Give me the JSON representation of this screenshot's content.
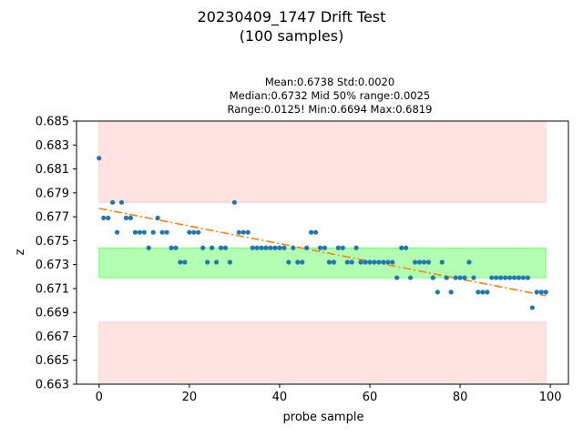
{
  "chart_data": {
    "type": "scatter",
    "title": "20230409_1747 Drift Test",
    "subtitle": "(100 samples)",
    "stats_lines": [
      "Mean:0.6738  Std:0.0020",
      "Median:0.6732  Mid 50% range:0.0025",
      "Range:0.0125!  Min:0.6694  Max:0.6819"
    ],
    "xlabel": "probe sample",
    "ylabel": "z",
    "xlim": [
      -5,
      104
    ],
    "ylim": [
      0.663,
      0.685
    ],
    "xticks": [
      0,
      20,
      40,
      60,
      80,
      100
    ],
    "xtick_labels": [
      "0",
      "20",
      "40",
      "60",
      "80",
      "100"
    ],
    "yticks": [
      0.663,
      0.665,
      0.667,
      0.669,
      0.671,
      0.673,
      0.675,
      0.677,
      0.679,
      0.681,
      0.683,
      0.685
    ],
    "ytick_labels": [
      "0.663",
      "0.665",
      "0.667",
      "0.669",
      "0.671",
      "0.673",
      "0.675",
      "0.677",
      "0.679",
      "0.681",
      "0.683",
      "0.685"
    ],
    "grid": false,
    "bands": [
      {
        "kind": "upper-limit",
        "x": [
          0,
          99
        ],
        "y": [
          0.6782,
          0.685
        ],
        "color": "#ffcccc",
        "opacity": 0.55
      },
      {
        "kind": "target",
        "x": [
          0,
          99
        ],
        "y": [
          0.6719,
          0.6744
        ],
        "color": "#66ff66",
        "opacity": 0.5
      },
      {
        "kind": "lower-limit",
        "x": [
          0,
          99
        ],
        "y": [
          0.663,
          0.6682
        ],
        "color": "#ffcccc",
        "opacity": 0.55
      }
    ],
    "series": [
      {
        "kind": "points",
        "color": "#1f77b4",
        "x": [
          0,
          1,
          2,
          3,
          4,
          5,
          6,
          7,
          8,
          9,
          10,
          11,
          12,
          13,
          14,
          15,
          16,
          17,
          18,
          19,
          20,
          21,
          22,
          23,
          24,
          25,
          26,
          27,
          28,
          29,
          30,
          31,
          32,
          33,
          34,
          35,
          36,
          37,
          38,
          39,
          40,
          41,
          42,
          43,
          44,
          45,
          46,
          47,
          48,
          49,
          50,
          51,
          52,
          53,
          54,
          55,
          56,
          57,
          58,
          59,
          60,
          61,
          62,
          63,
          64,
          65,
          66,
          67,
          68,
          69,
          70,
          71,
          72,
          73,
          74,
          75,
          76,
          77,
          78,
          79,
          80,
          81,
          82,
          83,
          84,
          85,
          86,
          87,
          88,
          89,
          90,
          91,
          92,
          93,
          94,
          95,
          96,
          97,
          98,
          99
        ],
        "y": [
          0.6819,
          0.6769,
          0.6769,
          0.6782,
          0.6757,
          0.6782,
          0.6769,
          0.6769,
          0.6757,
          0.6757,
          0.6757,
          0.6744,
          0.6757,
          0.6769,
          0.6757,
          0.6757,
          0.6744,
          0.6744,
          0.6732,
          0.6732,
          0.6757,
          0.6757,
          0.6757,
          0.6744,
          0.6732,
          0.6744,
          0.6732,
          0.6744,
          0.6744,
          0.6732,
          0.6782,
          0.6757,
          0.6757,
          0.6757,
          0.6744,
          0.6744,
          0.6744,
          0.6744,
          0.6744,
          0.6744,
          0.6744,
          0.6744,
          0.6732,
          0.6744,
          0.6732,
          0.6732,
          0.6744,
          0.6757,
          0.6757,
          0.6744,
          0.6744,
          0.6732,
          0.6732,
          0.6744,
          0.6744,
          0.6732,
          0.6732,
          0.6744,
          0.6732,
          0.6732,
          0.6732,
          0.6732,
          0.6732,
          0.6732,
          0.6732,
          0.6732,
          0.6719,
          0.6744,
          0.6744,
          0.6719,
          0.6732,
          0.6732,
          0.6732,
          0.6732,
          0.6719,
          0.6707,
          0.6732,
          0.6719,
          0.6707,
          0.6719,
          0.6719,
          0.6719,
          0.6732,
          0.6719,
          0.6707,
          0.6707,
          0.6707,
          0.6719,
          0.6719,
          0.6719,
          0.6719,
          0.6719,
          0.6719,
          0.6719,
          0.6719,
          0.6719,
          0.6694,
          0.6707,
          0.6707,
          0.6707
        ]
      },
      {
        "kind": "trend",
        "color": "#ff7f0e",
        "style": "dash-dot",
        "x": [
          0,
          99
        ],
        "y": [
          0.6777,
          0.6704
        ]
      }
    ]
  }
}
